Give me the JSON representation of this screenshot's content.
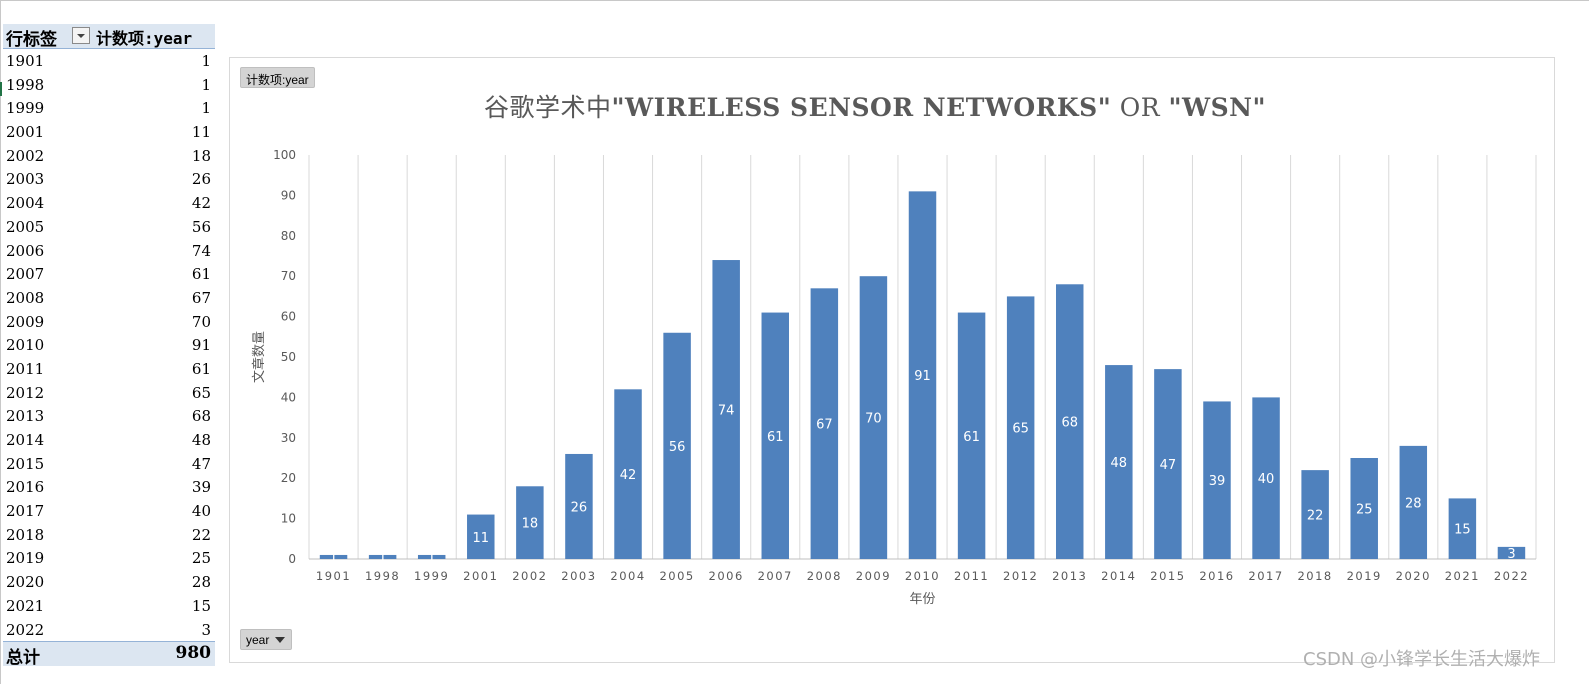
{
  "pivot": {
    "header_row_label": "行标签",
    "header_value_label": "计数项:year",
    "rows": [
      {
        "label": "1901",
        "value": "1"
      },
      {
        "label": "1998",
        "value": "1"
      },
      {
        "label": "1999",
        "value": "1"
      },
      {
        "label": "2001",
        "value": "11"
      },
      {
        "label": "2002",
        "value": "18"
      },
      {
        "label": "2003",
        "value": "26"
      },
      {
        "label": "2004",
        "value": "42"
      },
      {
        "label": "2005",
        "value": "56"
      },
      {
        "label": "2006",
        "value": "74"
      },
      {
        "label": "2007",
        "value": "61"
      },
      {
        "label": "2008",
        "value": "67"
      },
      {
        "label": "2009",
        "value": "70"
      },
      {
        "label": "2010",
        "value": "91"
      },
      {
        "label": "2011",
        "value": "61"
      },
      {
        "label": "2012",
        "value": "65"
      },
      {
        "label": "2013",
        "value": "68"
      },
      {
        "label": "2014",
        "value": "48"
      },
      {
        "label": "2015",
        "value": "47"
      },
      {
        "label": "2016",
        "value": "39"
      },
      {
        "label": "2017",
        "value": "40"
      },
      {
        "label": "2018",
        "value": "22"
      },
      {
        "label": "2019",
        "value": "25"
      },
      {
        "label": "2020",
        "value": "28"
      },
      {
        "label": "2021",
        "value": "15"
      },
      {
        "label": "2022",
        "value": "3"
      }
    ],
    "total_label": "总计",
    "total_value": "980"
  },
  "chart_field_button": "计数项:year",
  "axis_field_button": "year",
  "watermark": "CSDN @小锋学长生活大爆炸",
  "chart_data": {
    "type": "bar",
    "title_prefix": "谷歌学术中",
    "title_bold_1": "\"WIRELESS SENSOR NETWORKS\"",
    "title_mid": " OR ",
    "title_bold_2": "\"WSN\"",
    "xlabel": "年份",
    "ylabel": "文章数量",
    "ylim": [
      0,
      100
    ],
    "yticks": [
      0,
      10,
      20,
      30,
      40,
      50,
      60,
      70,
      80,
      90,
      100
    ],
    "categories": [
      "1901",
      "1998",
      "1999",
      "2001",
      "2002",
      "2003",
      "2004",
      "2005",
      "2006",
      "2007",
      "2008",
      "2009",
      "2010",
      "2011",
      "2012",
      "2013",
      "2014",
      "2015",
      "2016",
      "2017",
      "2018",
      "2019",
      "2020",
      "2021",
      "2022"
    ],
    "values": [
      1,
      1,
      1,
      11,
      18,
      26,
      42,
      56,
      74,
      61,
      67,
      70,
      91,
      61,
      65,
      68,
      48,
      47,
      39,
      40,
      22,
      25,
      28,
      15,
      3
    ],
    "bar_color": "#4f81bd",
    "data_labels": true,
    "data_label_color": "#ffffff",
    "gridlines": "vertical",
    "legend": "none"
  }
}
